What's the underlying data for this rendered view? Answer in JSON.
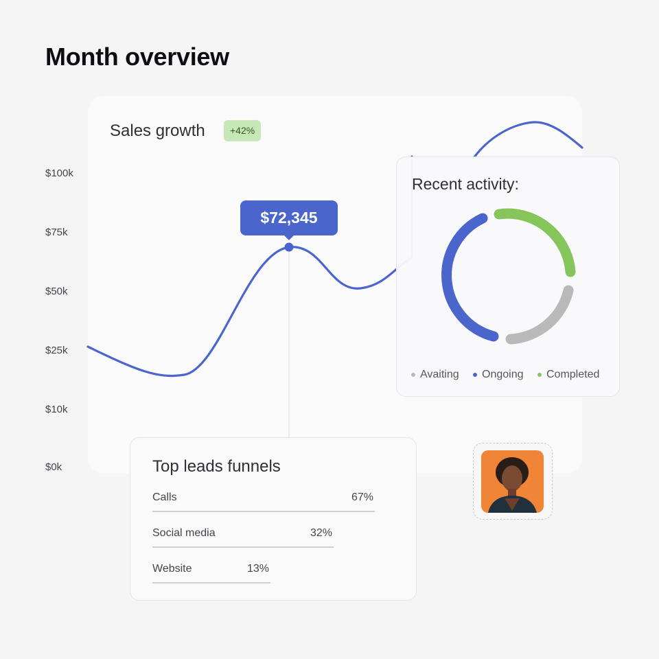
{
  "page": {
    "title": "Month overview"
  },
  "sales": {
    "title": "Sales growth",
    "badge": "+42%",
    "tooltip_value": "$72,345",
    "line_color": "#4a65cc"
  },
  "chart_data": {
    "type": "line",
    "yticks": [
      "$100k",
      "$75k",
      "$50k",
      "$25k",
      "$10k",
      "$0k"
    ],
    "highlighted_point": {
      "value": 72345,
      "label": "$72,345"
    }
  },
  "activity": {
    "title": "Recent activity:",
    "segments": [
      {
        "name": "Ongoing",
        "color": "#4a65cc"
      },
      {
        "name": "Completed",
        "color": "#86c55c"
      },
      {
        "name": "Avaiting",
        "color": "#b9b9b9"
      }
    ],
    "legend": [
      {
        "label": "Avaiting",
        "color": "#b9b9b9"
      },
      {
        "label": "Ongoing",
        "color": "#4a65cc"
      },
      {
        "label": "Completed",
        "color": "#86c55c"
      }
    ]
  },
  "leads": {
    "title": "Top leads funnels",
    "rows": [
      {
        "name": "Calls",
        "percent": "67%"
      },
      {
        "name": "Social media",
        "percent": "32%"
      },
      {
        "name": "Website",
        "percent": "13%"
      }
    ]
  },
  "avatar": {
    "background": "#f08437"
  }
}
